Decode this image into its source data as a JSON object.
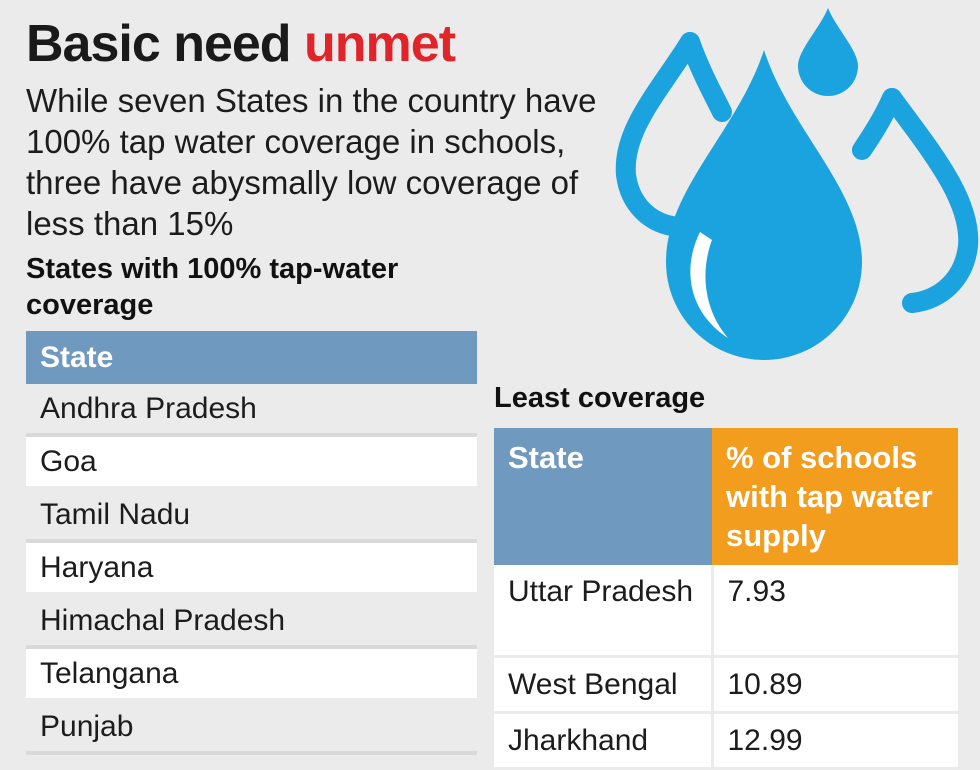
{
  "title": {
    "main": "Basic need",
    "accent": "unmet"
  },
  "subtitle": "While seven States in the country have 100% tap water coverage in schools, three have abysmally low coverage of less than 15%",
  "full_coverage": {
    "heading": "States with 100% tap-water coverage",
    "column": "State",
    "states": [
      "Andhra Pradesh",
      "Goa",
      "Tamil Nadu",
      "Haryana",
      "Himachal Pradesh",
      "Telangana",
      "Punjab"
    ]
  },
  "least_coverage": {
    "heading": "Least coverage",
    "columns": [
      "State",
      "% of schools with tap water supply"
    ],
    "rows": [
      {
        "state": "Uttar Pradesh",
        "value": "7.93"
      },
      {
        "state": "West Bengal",
        "value": "10.89"
      },
      {
        "state": "Jharkhand",
        "value": "12.99"
      }
    ]
  },
  "chart_data": [
    {
      "type": "table",
      "title": "States with 100% tap-water coverage",
      "columns": [
        "State"
      ],
      "rows": [
        [
          "Andhra Pradesh"
        ],
        [
          "Goa"
        ],
        [
          "Tamil Nadu"
        ],
        [
          "Haryana"
        ],
        [
          "Himachal Pradesh"
        ],
        [
          "Telangana"
        ],
        [
          "Punjab"
        ]
      ]
    },
    {
      "type": "table",
      "title": "Least coverage",
      "columns": [
        "State",
        "% of schools with tap water supply"
      ],
      "rows": [
        [
          "Uttar Pradesh",
          7.93
        ],
        [
          "West Bengal",
          10.89
        ],
        [
          "Jharkhand",
          12.99
        ]
      ]
    }
  ],
  "colors": {
    "accent": "#e0242a",
    "header_blue": "#6f99bf",
    "header_orange": "#f39d1f",
    "drop_blue": "#1ba3e0"
  },
  "icons": [
    "water-drop-icon"
  ]
}
